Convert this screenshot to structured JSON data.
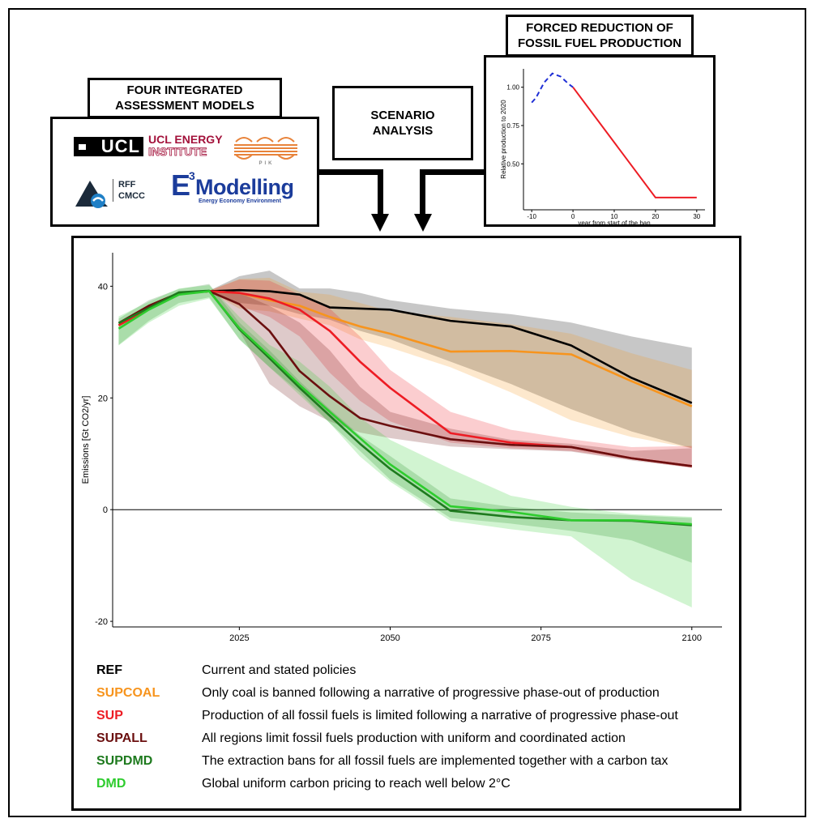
{
  "models_box": {
    "title": "FOUR INTEGRATED\nASSESSMENT MODELS"
  },
  "logos": {
    "ucl": "UCL",
    "ucl_energy_line1": "UCL ENERGY",
    "ucl_energy_line2": "INSTITUTE",
    "pik": "PIK",
    "rff_line1": "RFF",
    "rff_line2": "CMCC",
    "e3_main": "Modelling",
    "e3_sub": "Energy Economy Environment",
    "e3_letter": "E",
    "e3_exp": "3"
  },
  "scenario_box": {
    "title": "SCENARIO\nANALYSIS"
  },
  "forced_box": {
    "title": "FORCED REDUCTION OF\nFOSSIL FUEL PRODUCTION"
  },
  "colors": {
    "REF": "#000000",
    "SUPCOAL": "#f7941d",
    "SUP": "#ed1c24",
    "SUPALL": "#6b0f0f",
    "SUPDMD": "#1e7a1e",
    "DMD": "#2ecc2e",
    "blue_dash": "#1f2fd6"
  },
  "chart_data": [
    {
      "type": "line",
      "xlabel": "year from start of the ban",
      "ylabel": "Relative production to 2020",
      "xlim": [
        -12,
        32
      ],
      "ylim": [
        0.2,
        1.12
      ],
      "xticks": [
        -10,
        0,
        10,
        20,
        30
      ],
      "yticks": [
        0.5,
        0.75,
        1.0
      ],
      "ytick_labels": [
        "0.50",
        "0.75",
        "1.00"
      ],
      "series": [
        {
          "style": "dashed-blue",
          "x": [
            -10,
            -9,
            -7,
            -5,
            -3,
            -1,
            0
          ],
          "y": [
            0.9,
            0.93,
            1.03,
            1.09,
            1.07,
            1.02,
            1.0
          ]
        },
        {
          "style": "solid-red",
          "x": [
            0,
            20,
            30
          ],
          "y": [
            1.0,
            0.28,
            0.28
          ]
        }
      ]
    },
    {
      "type": "area",
      "ylabel": "Emissions [Gt CO2/yr]",
      "xlim": [
        2004,
        2105
      ],
      "ylim": [
        -21,
        46
      ],
      "xticks": [
        2025,
        2050,
        2075,
        2100
      ],
      "yticks": [
        -20,
        0,
        20,
        40
      ],
      "x": [
        2005,
        2010,
        2015,
        2020,
        2025,
        2030,
        2035,
        2040,
        2045,
        2050,
        2060,
        2070,
        2080,
        2090,
        2100
      ],
      "series": [
        {
          "name": "REF",
          "values": [
            33,
            36,
            38.7,
            39.1,
            39.3,
            39.1,
            38.5,
            36.2,
            36,
            35.8,
            33.8,
            32.8,
            29.4,
            23.6,
            19.1
          ],
          "upper": [
            33,
            36,
            38.7,
            39.2,
            41.8,
            42.8,
            39.6,
            39.6,
            38.8,
            37.5,
            36,
            35,
            33.5,
            31,
            29
          ],
          "lower": [
            33,
            36,
            38.7,
            39.0,
            37,
            36.5,
            35,
            34,
            32,
            30.5,
            26.5,
            22.5,
            18,
            14,
            11
          ]
        },
        {
          "name": "SUPCOAL",
          "values": [
            33,
            36,
            38.7,
            39.1,
            38.8,
            37.5,
            36.5,
            34.5,
            32.8,
            31.5,
            28.3,
            28.4,
            27.8,
            23,
            18.5
          ],
          "upper": [
            33,
            36,
            38.7,
            39.2,
            41.3,
            41.5,
            39,
            38.5,
            37,
            35.5,
            34.5,
            33.2,
            31.5,
            28,
            25
          ],
          "lower": [
            33,
            36,
            38.7,
            39.0,
            36,
            35.5,
            34.2,
            33,
            30.5,
            29,
            25.5,
            21,
            16,
            13,
            11
          ]
        },
        {
          "name": "SUP",
          "values": [
            33,
            36,
            38.7,
            39.1,
            38.8,
            37.8,
            35.8,
            32,
            26.5,
            21.8,
            13.7,
            12,
            11.2,
            9.2,
            7.8
          ],
          "upper": [
            33,
            36,
            38.7,
            39.2,
            41.2,
            41,
            38.5,
            36,
            31,
            25,
            17.5,
            14.3,
            12.6,
            11.2,
            11.4
          ],
          "lower": [
            33,
            36,
            38.7,
            39.0,
            36.5,
            34.5,
            31,
            24.5,
            19.5,
            15.8,
            12,
            11,
            10.5,
            9,
            7.5
          ]
        },
        {
          "name": "SUPALL",
          "values": [
            33.4,
            36.5,
            38.8,
            39.1,
            36.8,
            32,
            24.8,
            20.3,
            16.4,
            15,
            12.6,
            11.6,
            11.2,
            9.2,
            7.8
          ],
          "upper": [
            33.5,
            36.6,
            38.9,
            39.2,
            38.8,
            36.5,
            33.5,
            28.5,
            22,
            17.5,
            14.5,
            12.5,
            11.8,
            10.5,
            11
          ],
          "lower": [
            33.3,
            36.4,
            38.7,
            39.0,
            32,
            22.5,
            18.5,
            15.8,
            13.8,
            12.8,
            11.3,
            10.8,
            10.4,
            8.8,
            7.5
          ]
        },
        {
          "name": "SUPDMD",
          "values": [
            33.4,
            36.1,
            38.9,
            39.2,
            32.3,
            27.1,
            21.8,
            16.8,
            11.8,
            7.3,
            -0.2,
            -1.3,
            -1.9,
            -2,
            -2.8
          ],
          "upper": [
            34.2,
            37.5,
            39.5,
            40.4,
            33.5,
            28.5,
            23,
            18,
            13.3,
            9.6,
            2,
            0.5,
            -0.5,
            -1,
            -1.5
          ],
          "lower": [
            29.5,
            33.8,
            37,
            38,
            30.5,
            25.5,
            21,
            15.5,
            10.5,
            5.4,
            -1.5,
            -2.5,
            -3.8,
            -5.5,
            -9.5
          ]
        },
        {
          "name": "DMD",
          "values": [
            32.4,
            35.8,
            38.5,
            39.1,
            32.5,
            27.5,
            22.3,
            17.5,
            12.8,
            8.1,
            0.6,
            -0.4,
            -1.9,
            -1.9,
            -2.6
          ],
          "upper": [
            34.6,
            37.2,
            39.6,
            40.2,
            34.5,
            29.5,
            26.5,
            22,
            16.5,
            12.5,
            7.3,
            2.5,
            0.5,
            -0.8,
            -1.3
          ],
          "lower": [
            29.4,
            33.5,
            36.5,
            37.8,
            30.5,
            25.5,
            20.5,
            15.5,
            9.5,
            5,
            -2,
            -3.5,
            -4.8,
            -12.5,
            -17.5
          ]
        }
      ]
    }
  ],
  "legend": [
    {
      "code": "REF",
      "desc": "Current and stated policies"
    },
    {
      "code": "SUPCOAL",
      "desc": "Only coal is banned following a narrative of progressive phase-out of production"
    },
    {
      "code": "SUP",
      "desc": "Production of all fossil fuels is limited following a narrative of progressive phase-out"
    },
    {
      "code": "SUPALL",
      "desc": "All regions limit fossil fuels production with uniform and coordinated action"
    },
    {
      "code": "SUPDMD",
      "desc": "The extraction bans for all fossil fuels are implemented together with a carbon tax"
    },
    {
      "code": "DMD",
      "desc": "Global uniform carbon pricing to reach well below 2°C"
    }
  ]
}
